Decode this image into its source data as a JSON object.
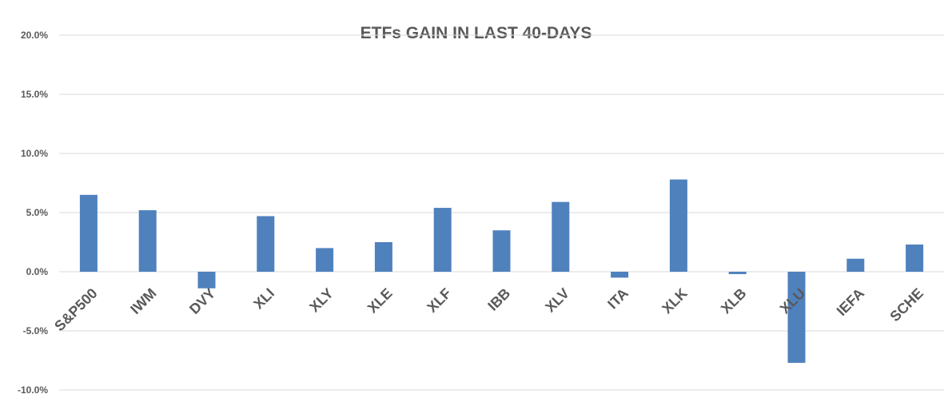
{
  "chart_data": {
    "type": "bar",
    "title": "ETFs GAIN IN LAST 40-DAYS",
    "xlabel": "",
    "ylabel": "",
    "categories": [
      "S&P500",
      "IWM",
      "DVY",
      "XLI",
      "XLY",
      "XLE",
      "XLF",
      "IBB",
      "XLV",
      "ITA",
      "XLK",
      "XLB",
      "XLU",
      "IEFA",
      "SCHE"
    ],
    "values": [
      6.5,
      5.2,
      -1.4,
      4.7,
      2.0,
      2.5,
      5.4,
      3.5,
      5.9,
      -0.5,
      7.8,
      -0.2,
      -7.7,
      1.1,
      2.3
    ],
    "ylim": [
      -10,
      20
    ],
    "yticks": [
      "20.0%",
      "15.0%",
      "10.0%",
      "5.0%",
      "0.0%",
      "-5.0%",
      "-10.0%"
    ],
    "ytick_values": [
      20,
      15,
      10,
      5,
      0,
      -5,
      -10
    ],
    "grid": true,
    "bar_color": "#4f81bd",
    "grid_color": "#d9d9d9",
    "tick_label_color": "#595959"
  }
}
